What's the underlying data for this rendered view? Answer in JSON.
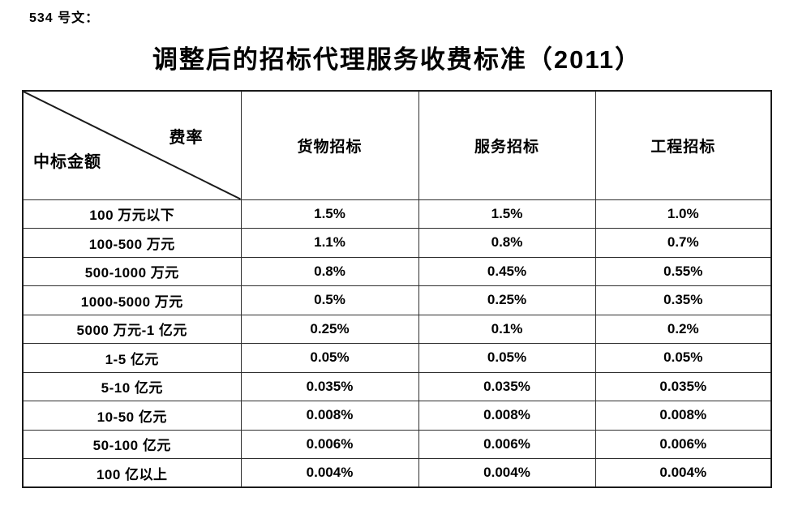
{
  "document": {
    "doc_number": "534 号文：",
    "title": "调整后的招标代理服务收费标准（2011）"
  },
  "table": {
    "corner": {
      "top_right": "费率",
      "bottom_left": "中标金额"
    },
    "columns": [
      "货物招标",
      "服务招标",
      "工程招标"
    ],
    "rows": [
      {
        "label": "100 万元以下",
        "values": [
          "1.5%",
          "1.5%",
          "1.0%"
        ]
      },
      {
        "label": "100-500 万元",
        "values": [
          "1.1%",
          "0.8%",
          "0.7%"
        ]
      },
      {
        "label": "500-1000 万元",
        "values": [
          "0.8%",
          "0.45%",
          "0.55%"
        ]
      },
      {
        "label": "1000-5000 万元",
        "values": [
          "0.5%",
          "0.25%",
          "0.35%"
        ]
      },
      {
        "label": "5000 万元-1 亿元",
        "values": [
          "0.25%",
          "0.1%",
          "0.2%"
        ]
      },
      {
        "label": "1-5 亿元",
        "values": [
          "0.05%",
          "0.05%",
          "0.05%"
        ]
      },
      {
        "label": "5-10 亿元",
        "values": [
          "0.035%",
          "0.035%",
          "0.035%"
        ]
      },
      {
        "label": "10-50 亿元",
        "values": [
          "0.008%",
          "0.008%",
          "0.008%"
        ]
      },
      {
        "label": "50-100 亿元",
        "values": [
          "0.006%",
          "0.006%",
          "0.006%"
        ]
      },
      {
        "label": "100 亿以上",
        "values": [
          "0.004%",
          "0.004%",
          "0.004%"
        ]
      }
    ]
  }
}
